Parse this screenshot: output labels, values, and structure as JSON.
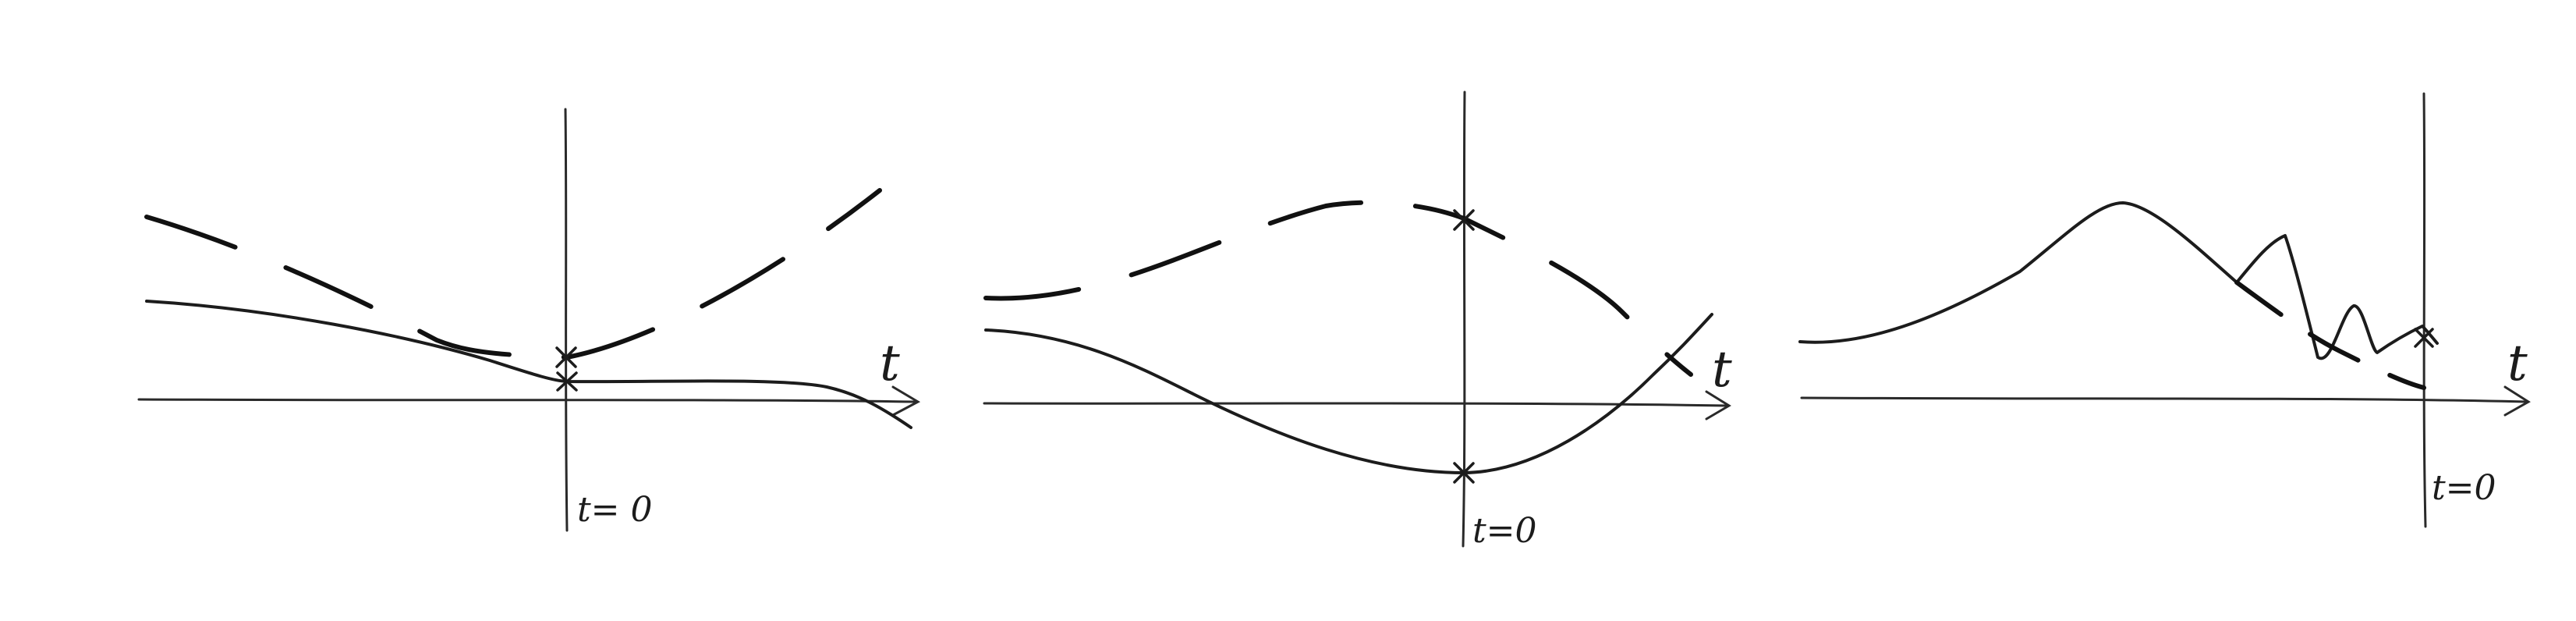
{
  "diagrams": [
    {
      "axis_label": "t",
      "origin_label": "t= 0"
    },
    {
      "axis_label": "t",
      "origin_label": "t=0"
    },
    {
      "axis_label": "t",
      "origin_label": "t=0"
    }
  ],
  "line_color": "#1c1c1c",
  "background": "#ffffff"
}
